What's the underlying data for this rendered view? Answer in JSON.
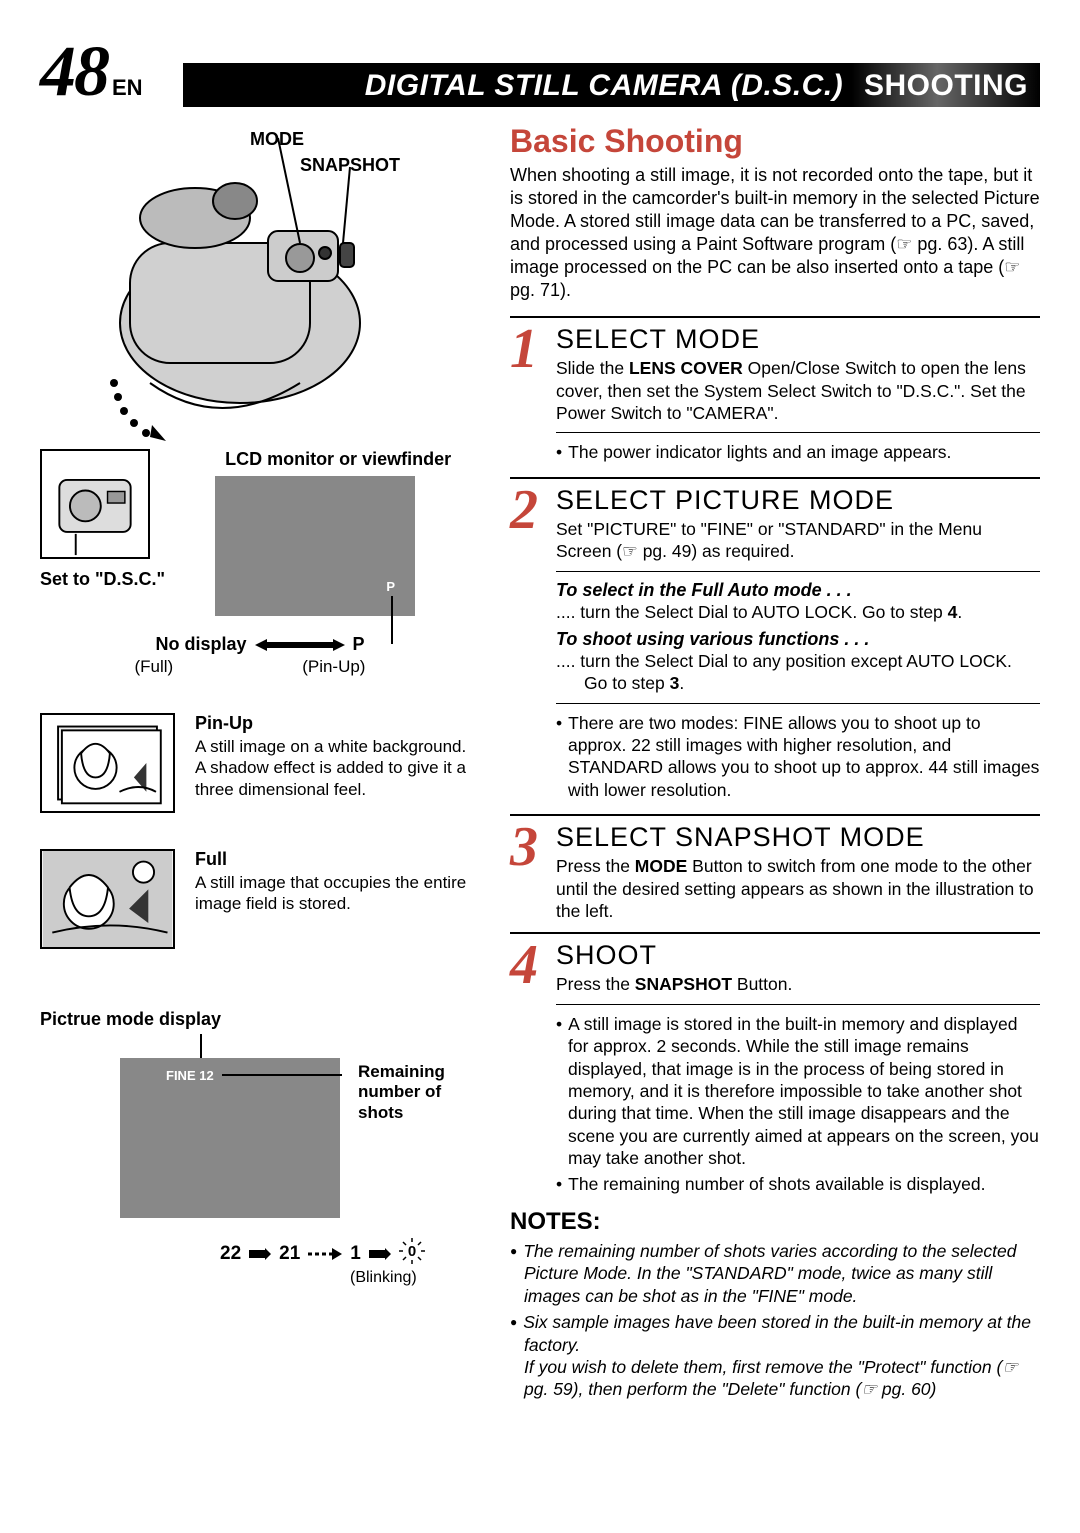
{
  "page": {
    "number": "48",
    "lang": "EN"
  },
  "banner": {
    "main": "DIGITAL STILL CAMERA (D.S.C.)",
    "sub": "SHOOTING"
  },
  "colors": {
    "accent": "#c5463a",
    "screen_bg": "#888888"
  },
  "left": {
    "labels": {
      "mode": "MODE",
      "snapshot": "SNAPSHOT",
      "lcd": "LCD monitor or viewfinder",
      "set_dsc": "Set to \"D.S.C.\"",
      "p_indicator": "P",
      "no_display": "No display",
      "p_label": "P",
      "full_caption": "(Full)",
      "pinup_caption": "(Pin-Up)"
    },
    "pinup": {
      "title": "Pin-Up",
      "desc": "A still image on a white background. A shadow effect is added to give it a three dimensional feel."
    },
    "full": {
      "title": "Full",
      "desc": "A still image that occupies the entire image field is stored."
    },
    "pict_mode": {
      "title": "Pictrue mode display",
      "fine_text": "FINE 12",
      "remaining_label": "Remaining number of shots",
      "counter_a": "22",
      "counter_b": "21",
      "counter_c": "1",
      "counter_d": "0",
      "blinking": "(Blinking)"
    }
  },
  "right": {
    "title": "Basic Shooting",
    "intro": "When shooting a still image, it is not recorded onto the tape, but it is stored in the camcorder's built-in memory in the selected Picture Mode. A stored still image data can be transferred to a PC, saved, and processed using a Paint Software program (☞ pg. 63). A still image processed on the PC can be also inserted onto a tape (☞ pg. 71).",
    "steps": [
      {
        "num": "1",
        "title": "SELECT MODE",
        "body": "Slide the <b>LENS COVER</b> Open/Close Switch to open the lens cover, then set the System Select Switch to \"D.S.C.\". Set the Power Switch to \"CAMERA\".",
        "bullets": [
          "The power indicator lights and an image appears."
        ]
      },
      {
        "num": "2",
        "title": "SELECT PICTURE MODE",
        "body": "Set \"PICTURE\" to \"FINE\" or \"STANDARD\" in the Menu Screen (☞ pg. 49) as required.",
        "subs": [
          {
            "em": "To select in the Full Auto mode . . .",
            "txt": ".... turn the Select Dial to AUTO LOCK. Go to step <b>4</b>."
          },
          {
            "em": "To shoot using various functions . . .",
            "txt": ".... turn the Select Dial to any position except AUTO LOCK. Go to step <b>3</b>."
          }
        ],
        "bullets": [
          "There are two modes: FINE allows you to shoot up to approx. 22 still images with higher resolution, and STANDARD allows you to shoot up to approx. 44 still images with lower resolution."
        ]
      },
      {
        "num": "3",
        "title": "SELECT SNAPSHOT MODE",
        "body": "Press the <b>MODE</b> Button to switch from one mode to the other until the desired setting appears as shown in the illustration to the left."
      },
      {
        "num": "4",
        "title": "SHOOT",
        "body": "Press the <b>SNAPSHOT</b> Button.",
        "bullets": [
          "A still image is stored in the built-in memory and displayed for approx. 2 seconds. While the still image remains displayed, that image is in the process of being stored in memory, and it is therefore impossible to take another shot during that time. When the still image disappears and the scene you are currently aimed at appears on the screen, you may take another shot.",
          "The remaining number of shots available is displayed."
        ]
      }
    ],
    "notes_title": "NOTES:",
    "notes": [
      "The remaining number of shots varies according to the selected Picture Mode. In the \"STANDARD\" mode, twice as many still images can be shot as in the \"FINE\" mode.",
      "Six sample images have been stored in the built-in memory at the factory.<br>If you wish to delete them, first remove the \"Protect\" function (☞ pg. 59), then perform the \"Delete\" function (☞ pg. 60)"
    ]
  }
}
